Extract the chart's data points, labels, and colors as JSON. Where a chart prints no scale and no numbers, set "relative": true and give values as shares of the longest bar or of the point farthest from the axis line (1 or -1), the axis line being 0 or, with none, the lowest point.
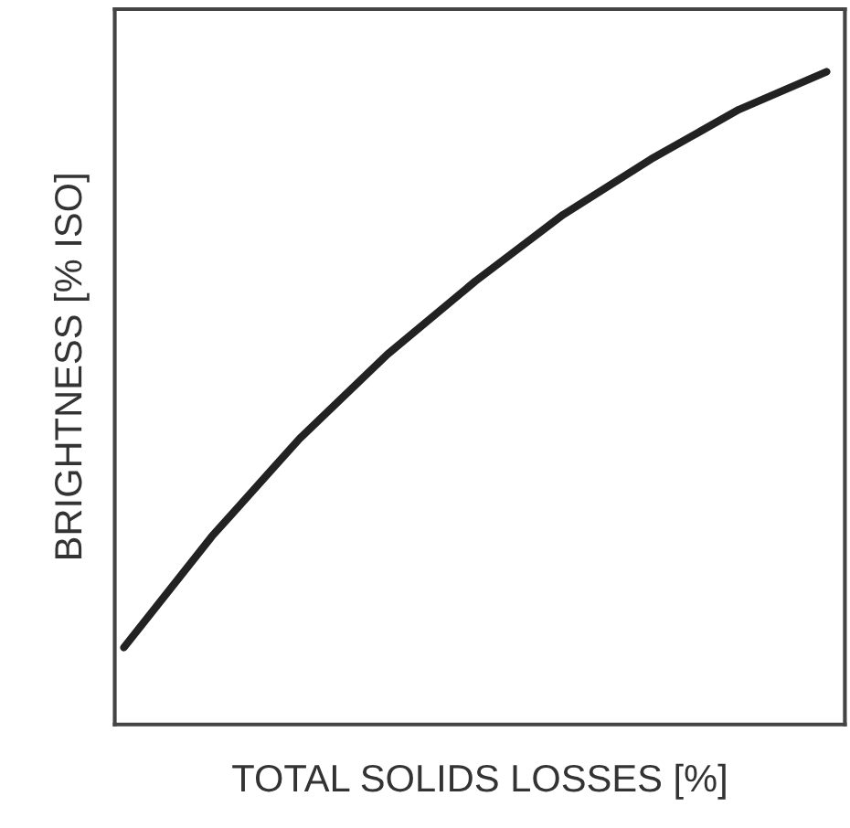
{
  "chart_data": {
    "type": "line",
    "relative": true,
    "xlabel": "TOTAL SOLIDS LOSSES [%]",
    "ylabel": "BRIGHTNESS [% ISO]",
    "categories": [
      null,
      null,
      null,
      null,
      null,
      null,
      null,
      null,
      null
    ],
    "series": [
      {
        "color": "#222222",
        "values": [
          0.118,
          0.288,
          0.438,
          0.567,
          0.679,
          0.781,
          0.866,
          0.942,
          1.0
        ]
      }
    ],
    "marker": "none",
    "line_style": "solid",
    "grid": false,
    "legend": false
  }
}
